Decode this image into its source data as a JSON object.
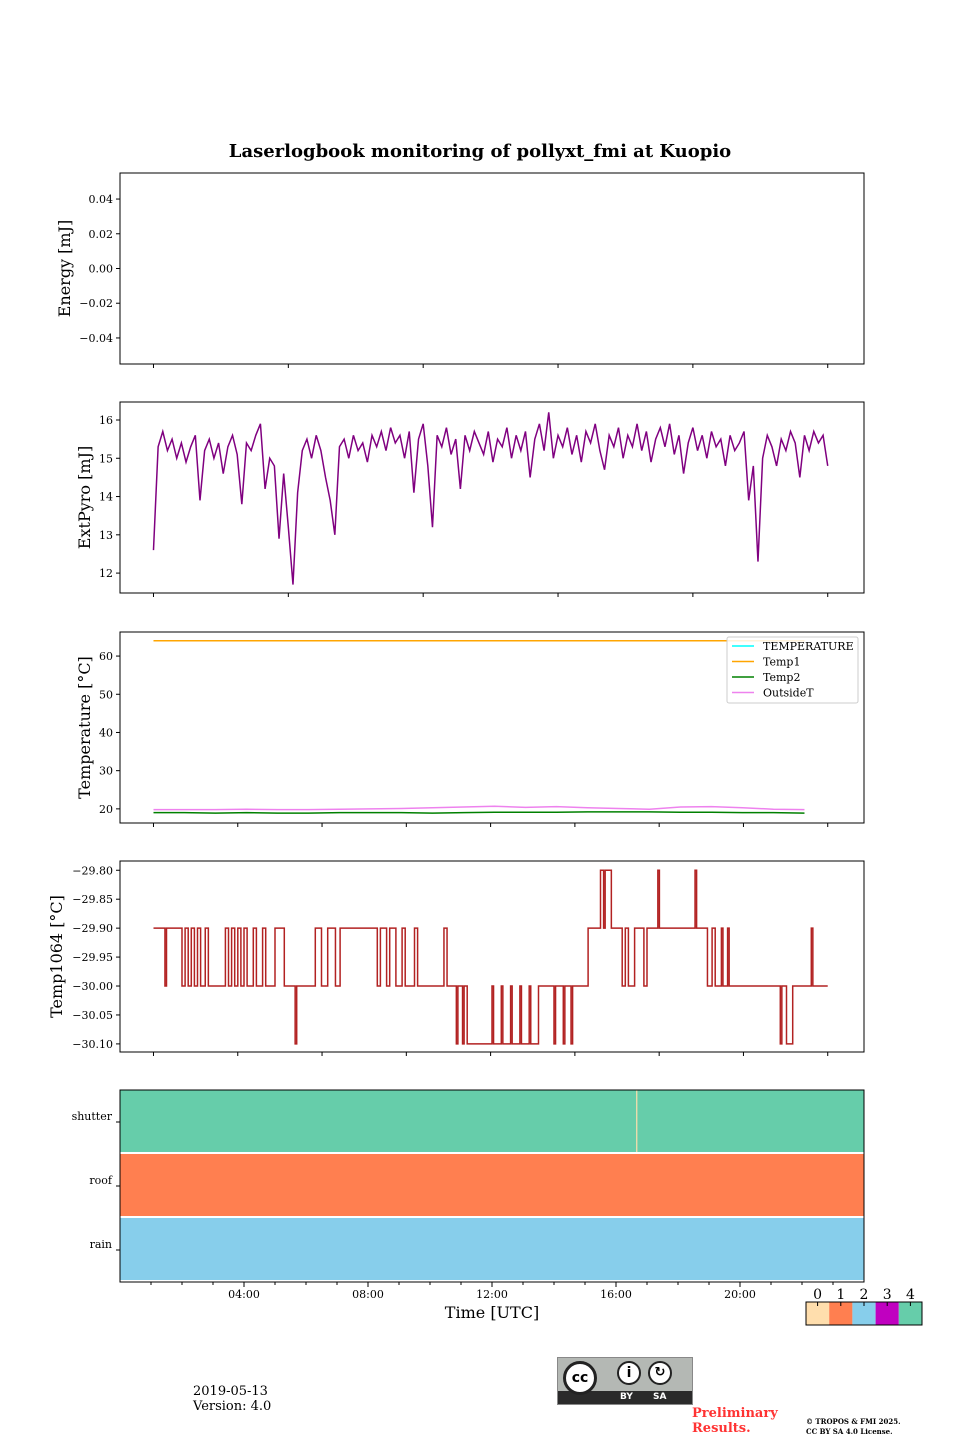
{
  "title": "Laserlogbook monitoring of pollyxt_fmi at Kuopio",
  "footer": {
    "date": "2019-05-13",
    "version": "Version: 4.0",
    "preliminary_line1": "Preliminary",
    "preliminary_line2": "Results.",
    "copyright_line1": "© TROPOS & FMI 2025.",
    "copyright_line2": "CC BY SA 4.0 License.",
    "license_logo_text": [
      "cc",
      "BY",
      "SA"
    ]
  },
  "chart_data": [
    {
      "type": "line",
      "ylabel": "Energy [mJ]",
      "ylim": [
        -0.055,
        0.055
      ],
      "yticks": [
        0.04,
        0.02,
        0.0,
        -0.02,
        -0.04
      ],
      "ytick_labels": [
        "0.04",
        "0.02",
        "0.00",
        "−0.02",
        "−0.04"
      ],
      "series": []
    },
    {
      "type": "line",
      "ylabel": "ExtPyro [mJ]",
      "ylim": [
        11.48,
        16.47
      ],
      "yticks": [
        16,
        15,
        14,
        13,
        12
      ],
      "ytick_labels": [
        "16",
        "15",
        "14",
        "13",
        "12"
      ],
      "series": [
        {
          "name": "ExtPyro",
          "color": "#800080",
          "x_start_hour": 1.08,
          "x_step_hour": 0.15,
          "values": [
            12.6,
            15.3,
            15.7,
            15.2,
            15.5,
            15.0,
            15.4,
            14.9,
            15.3,
            15.6,
            13.9,
            15.2,
            15.5,
            15.0,
            15.4,
            14.6,
            15.3,
            15.6,
            15.1,
            13.8,
            15.4,
            15.2,
            15.6,
            15.9,
            14.2,
            15.0,
            14.8,
            12.9,
            14.6,
            13.2,
            11.7,
            14.1,
            15.2,
            15.5,
            15.0,
            15.6,
            15.2,
            14.5,
            13.9,
            13.0,
            15.3,
            15.5,
            15.0,
            15.6,
            15.2,
            15.4,
            14.9,
            15.6,
            15.3,
            15.7,
            15.2,
            15.8,
            15.4,
            15.6,
            15.0,
            15.7,
            14.1,
            15.5,
            15.9,
            14.8,
            13.2,
            15.6,
            15.3,
            15.8,
            15.1,
            15.5,
            14.2,
            15.6,
            15.2,
            15.7,
            15.4,
            15.1,
            15.7,
            14.9,
            15.5,
            15.3,
            15.8,
            15.0,
            15.6,
            15.2,
            15.7,
            14.5,
            15.5,
            15.9,
            15.2,
            16.2,
            15.0,
            15.6,
            15.3,
            15.8,
            15.1,
            15.6,
            14.9,
            15.7,
            15.4,
            15.9,
            15.2,
            14.7,
            15.6,
            15.3,
            15.8,
            15.0,
            15.6,
            15.3,
            15.9,
            15.2,
            15.7,
            14.9,
            15.5,
            15.8,
            15.3,
            15.9,
            15.1,
            15.6,
            14.6,
            15.4,
            15.8,
            15.2,
            15.6,
            15.0,
            15.7,
            15.3,
            15.5,
            14.8,
            15.6,
            15.2,
            15.4,
            15.7,
            13.9,
            14.8,
            12.3,
            15.0,
            15.6,
            15.3,
            14.8,
            15.5,
            15.2,
            15.7,
            15.4,
            14.5,
            15.6,
            15.2,
            15.7,
            15.4,
            15.6,
            14.8
          ]
        }
      ]
    },
    {
      "type": "line",
      "ylabel": "Temperature [°C]",
      "ylim": [
        16.3,
        66.3
      ],
      "yticks": [
        60,
        50,
        40,
        30,
        20
      ],
      "ytick_labels": [
        "60",
        "50",
        "40",
        "30",
        "20"
      ],
      "legend": "top-right",
      "series": [
        {
          "name": "TEMPERATURE",
          "color": "#00ffff",
          "x_start_hour": 1.08,
          "x_step_hour": 1.0,
          "values": []
        },
        {
          "name": "Temp1",
          "color": "#ffa500",
          "x_start_hour": 1.08,
          "x_step_hour": 1.0,
          "values": [
            64,
            64,
            64,
            64,
            64,
            64,
            64,
            64,
            64,
            64,
            64,
            64,
            64,
            64,
            64,
            64,
            64,
            64,
            64,
            64,
            64,
            64
          ]
        },
        {
          "name": "Temp2",
          "color": "#008000",
          "x_start_hour": 1.08,
          "x_step_hour": 1.0,
          "values": [
            19.0,
            19.0,
            18.9,
            19.0,
            18.9,
            18.9,
            19.0,
            19.0,
            19.0,
            18.9,
            19.0,
            19.1,
            19.1,
            19.1,
            19.2,
            19.2,
            19.2,
            19.1,
            19.1,
            19.0,
            19.0,
            18.9
          ]
        },
        {
          "name": "OutsideT",
          "color": "#ee82ee",
          "x_start_hour": 1.08,
          "x_step_hour": 1.0,
          "values": [
            19.8,
            19.8,
            19.8,
            19.9,
            19.8,
            19.8,
            19.9,
            20.0,
            20.1,
            20.3,
            20.5,
            20.7,
            20.4,
            20.6,
            20.3,
            20.1,
            19.9,
            20.5,
            20.6,
            20.3,
            19.9,
            19.8
          ]
        }
      ]
    },
    {
      "type": "line",
      "ylabel": "Temp1064 [°C]",
      "ylim": [
        -30.114,
        -29.784
      ],
      "yticks": [
        -29.8,
        -29.85,
        -29.9,
        -29.95,
        -30.0,
        -30.05,
        -30.1
      ],
      "ytick_labels": [
        "−29.80",
        "−29.85",
        "−29.90",
        "−29.95",
        "−30.00",
        "−30.05",
        "−30.10"
      ],
      "series": [
        {
          "name": "Temp1064",
          "color": "#b22222",
          "step": true,
          "points": [
            [
              1.08,
              -29.9
            ],
            [
              1.45,
              -30.0
            ],
            [
              1.5,
              -29.9
            ],
            [
              2.0,
              -30.0
            ],
            [
              2.1,
              -29.9
            ],
            [
              2.2,
              -30.0
            ],
            [
              2.3,
              -29.9
            ],
            [
              2.4,
              -30.0
            ],
            [
              2.5,
              -29.9
            ],
            [
              2.6,
              -30.0
            ],
            [
              2.75,
              -29.9
            ],
            [
              2.85,
              -30.0
            ],
            [
              3.4,
              -29.9
            ],
            [
              3.5,
              -30.0
            ],
            [
              3.6,
              -29.9
            ],
            [
              3.7,
              -30.0
            ],
            [
              3.8,
              -29.9
            ],
            [
              3.9,
              -30.0
            ],
            [
              4.0,
              -29.9
            ],
            [
              4.1,
              -30.0
            ],
            [
              4.3,
              -29.9
            ],
            [
              4.4,
              -30.0
            ],
            [
              4.6,
              -29.9
            ],
            [
              4.7,
              -30.0
            ],
            [
              5.0,
              -29.9
            ],
            [
              5.3,
              -30.0
            ],
            [
              5.65,
              -30.1
            ],
            [
              5.7,
              -30.0
            ],
            [
              6.3,
              -29.9
            ],
            [
              6.5,
              -30.0
            ],
            [
              6.7,
              -29.9
            ],
            [
              6.95,
              -30.0
            ],
            [
              7.1,
              -29.9
            ],
            [
              8.3,
              -30.0
            ],
            [
              8.4,
              -29.9
            ],
            [
              8.6,
              -30.0
            ],
            [
              8.7,
              -29.9
            ],
            [
              8.9,
              -30.0
            ],
            [
              9.1,
              -29.9
            ],
            [
              9.2,
              -30.0
            ],
            [
              9.5,
              -29.9
            ],
            [
              9.6,
              -30.0
            ],
            [
              10.45,
              -29.9
            ],
            [
              10.55,
              -30.0
            ],
            [
              10.85,
              -30.1
            ],
            [
              10.9,
              -30.0
            ],
            [
              11.05,
              -30.1
            ],
            [
              11.1,
              -30.0
            ],
            [
              11.2,
              -30.1
            ],
            [
              12.0,
              -30.0
            ],
            [
              12.05,
              -30.1
            ],
            [
              12.3,
              -30.0
            ],
            [
              12.35,
              -30.1
            ],
            [
              12.6,
              -30.0
            ],
            [
              12.65,
              -30.1
            ],
            [
              12.9,
              -30.0
            ],
            [
              12.95,
              -30.1
            ],
            [
              13.2,
              -30.0
            ],
            [
              13.25,
              -30.1
            ],
            [
              13.5,
              -30.0
            ],
            [
              14.0,
              -30.1
            ],
            [
              14.05,
              -30.0
            ],
            [
              14.3,
              -30.1
            ],
            [
              14.35,
              -30.0
            ],
            [
              14.55,
              -30.1
            ],
            [
              14.6,
              -30.0
            ],
            [
              15.1,
              -29.9
            ],
            [
              15.5,
              -29.8
            ],
            [
              15.6,
              -29.9
            ],
            [
              15.65,
              -29.8
            ],
            [
              15.85,
              -29.9
            ],
            [
              16.2,
              -30.0
            ],
            [
              16.3,
              -29.9
            ],
            [
              16.4,
              -30.0
            ],
            [
              16.6,
              -29.9
            ],
            [
              16.9,
              -30.0
            ],
            [
              17.0,
              -29.9
            ],
            [
              17.35,
              -29.8
            ],
            [
              17.4,
              -29.9
            ],
            [
              18.55,
              -29.8
            ],
            [
              18.6,
              -29.9
            ],
            [
              18.95,
              -30.0
            ],
            [
              19.1,
              -29.9
            ],
            [
              19.2,
              -30.0
            ],
            [
              19.4,
              -29.9
            ],
            [
              19.45,
              -30.0
            ],
            [
              19.6,
              -29.9
            ],
            [
              19.65,
              -30.0
            ],
            [
              21.3,
              -30.1
            ],
            [
              21.35,
              -30.0
            ],
            [
              21.5,
              -30.1
            ],
            [
              21.7,
              -30.0
            ],
            [
              22.3,
              -29.9
            ],
            [
              22.35,
              -30.0
            ],
            [
              22.83,
              -30.0
            ]
          ]
        }
      ]
    },
    {
      "type": "heatmap",
      "xlabel": "Time [UTC]",
      "xlim_hours": [
        0,
        24
      ],
      "xtick_hours": [
        4,
        8,
        12,
        16,
        20
      ],
      "xtick_labels": [
        "04:00",
        "08:00",
        "12:00",
        "16:00",
        "20:00"
      ],
      "rows": [
        {
          "label": "shutter",
          "value": 4,
          "exceptions": [
            {
              "hour": 16.65,
              "value": 0
            }
          ]
        },
        {
          "label": "roof",
          "value": 1,
          "exceptions": []
        },
        {
          "label": "rain",
          "value": 2,
          "exceptions": []
        }
      ],
      "colorbar": {
        "ticks": [
          "0",
          "1",
          "2",
          "3",
          "4"
        ],
        "colors": [
          "#ffdead",
          "#ff7f50",
          "#87ceeb",
          "#c000c0",
          "#66cdaa"
        ]
      }
    }
  ]
}
